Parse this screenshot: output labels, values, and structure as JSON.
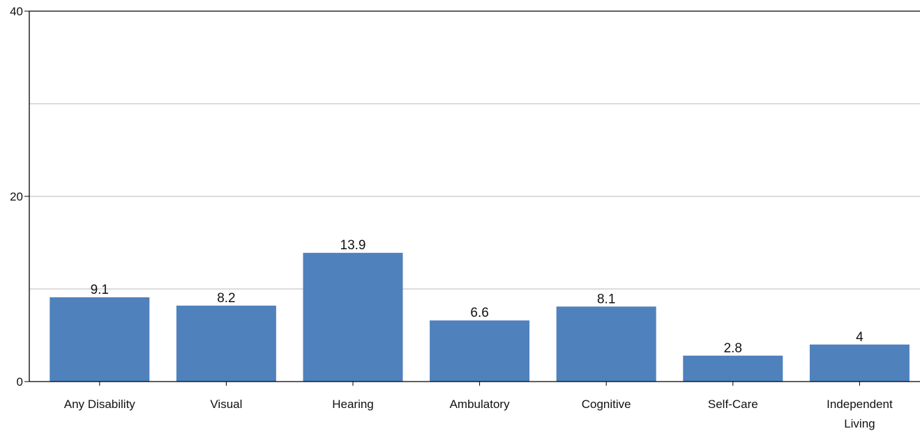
{
  "chart_data": {
    "type": "bar",
    "categories": [
      [
        "Any Disability"
      ],
      [
        "Visual"
      ],
      [
        "Hearing"
      ],
      [
        "Ambulatory"
      ],
      [
        "Cognitive"
      ],
      [
        "Self-Care"
      ],
      [
        "Independent",
        "Living"
      ]
    ],
    "values": [
      9.1,
      8.2,
      13.9,
      6.6,
      8.1,
      2.8,
      4
    ],
    "value_labels": [
      "9.1",
      "8.2",
      "13.9",
      "6.6",
      "8.1",
      "2.8",
      "4"
    ],
    "ylim": [
      0,
      40
    ],
    "yticks": [
      0,
      20,
      40
    ],
    "ytick_labels": [
      "0",
      "20",
      "40"
    ],
    "gridlines": [
      10,
      20,
      30
    ],
    "grid": true,
    "colors": {
      "bar": "#4F81BD",
      "grid": "#C8C8C8",
      "axis": "#000000",
      "text": "#111111"
    }
  }
}
